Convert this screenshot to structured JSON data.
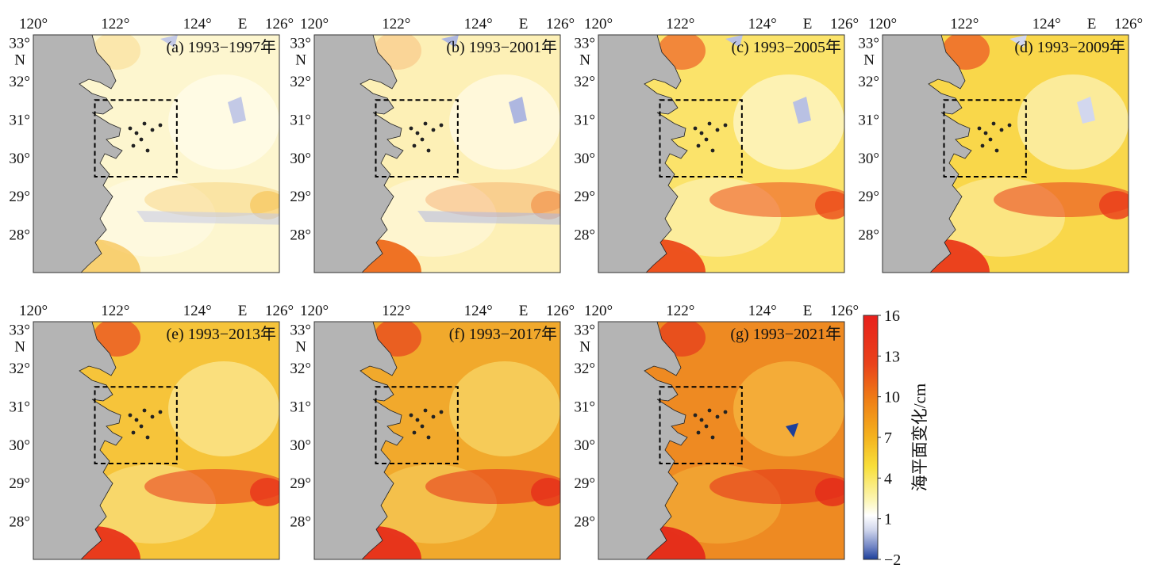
{
  "map": {
    "panels": [
      {
        "id": "a",
        "title": "(a) 1993−1997年"
      },
      {
        "id": "b",
        "title": "(b) 1993−2001年"
      },
      {
        "id": "c",
        "title": "(c) 1993−2005年"
      },
      {
        "id": "d",
        "title": "(d) 1993−2009年"
      },
      {
        "id": "e",
        "title": "(e) 1993−2013年"
      },
      {
        "id": "f",
        "title": "(f) 1993−2017年"
      },
      {
        "id": "g",
        "title": "(g) 1993−2021年"
      }
    ],
    "lon_ticks": [
      "120°",
      "122°",
      "124°",
      "126°"
    ],
    "lon_hemisphere": "E",
    "lat_ticks": [
      "33°",
      "32°",
      "31°",
      "30°",
      "29°",
      "28°"
    ],
    "lat_hemisphere": "N",
    "colorbar": {
      "label": "海平面变化/cm",
      "ticks": [
        "16",
        "13",
        "10",
        "7",
        "4",
        "1",
        "−2"
      ],
      "colors": {
        "max": "#e8201c",
        "high": "#f07a10",
        "mid": "#f5c81e",
        "low": "#fdf9d8",
        "zero": "#ffffff",
        "neg": "#1d3f9a"
      }
    },
    "colors": {
      "land": "#b4b4b4",
      "frame": "#333333",
      "box": "#000000"
    }
  }
}
